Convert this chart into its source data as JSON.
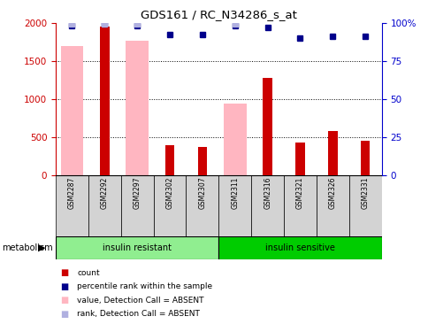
{
  "title": "GDS161 / RC_N34286_s_at",
  "samples": [
    "GSM2287",
    "GSM2292",
    "GSM2297",
    "GSM2302",
    "GSM2307",
    "GSM2311",
    "GSM2316",
    "GSM2321",
    "GSM2326",
    "GSM2331"
  ],
  "count_values": [
    0,
    1950,
    0,
    390,
    370,
    0,
    1270,
    430,
    580,
    450
  ],
  "pink_values": [
    1690,
    0,
    1760,
    0,
    0,
    940,
    0,
    0,
    0,
    0
  ],
  "blue_squares": [
    98,
    99,
    98,
    92,
    92,
    98,
    97,
    90,
    91,
    91
  ],
  "lavender_squares": [
    99,
    99,
    99,
    null,
    null,
    99,
    null,
    null,
    null,
    null
  ],
  "ylim_left": [
    0,
    2000
  ],
  "ylim_right": [
    0,
    100
  ],
  "yticks_left": [
    0,
    500,
    1000,
    1500,
    2000
  ],
  "yticks_right": [
    0,
    25,
    50,
    75,
    100
  ],
  "ytick_labels_right": [
    "0",
    "25",
    "50",
    "75",
    "100%"
  ],
  "groups": [
    {
      "label": "insulin resistant",
      "start": 0,
      "end": 5,
      "color": "#90ee90"
    },
    {
      "label": "insulin sensitive",
      "start": 5,
      "end": 10,
      "color": "#00cc00"
    }
  ],
  "group_row_label": "metabolism",
  "bar_color_red": "#cc0000",
  "bar_color_pink": "#ffb6c1",
  "sq_color_blue": "#00008b",
  "sq_color_lavender": "#b0b0e0",
  "tick_label_color_left": "#cc0000",
  "tick_label_color_right": "#0000cc",
  "legend_items": [
    {
      "color": "#cc0000",
      "label": "count"
    },
    {
      "color": "#00008b",
      "label": "percentile rank within the sample"
    },
    {
      "color": "#ffb6c1",
      "label": "value, Detection Call = ABSENT"
    },
    {
      "color": "#b0b0e0",
      "label": "rank, Detection Call = ABSENT"
    }
  ]
}
